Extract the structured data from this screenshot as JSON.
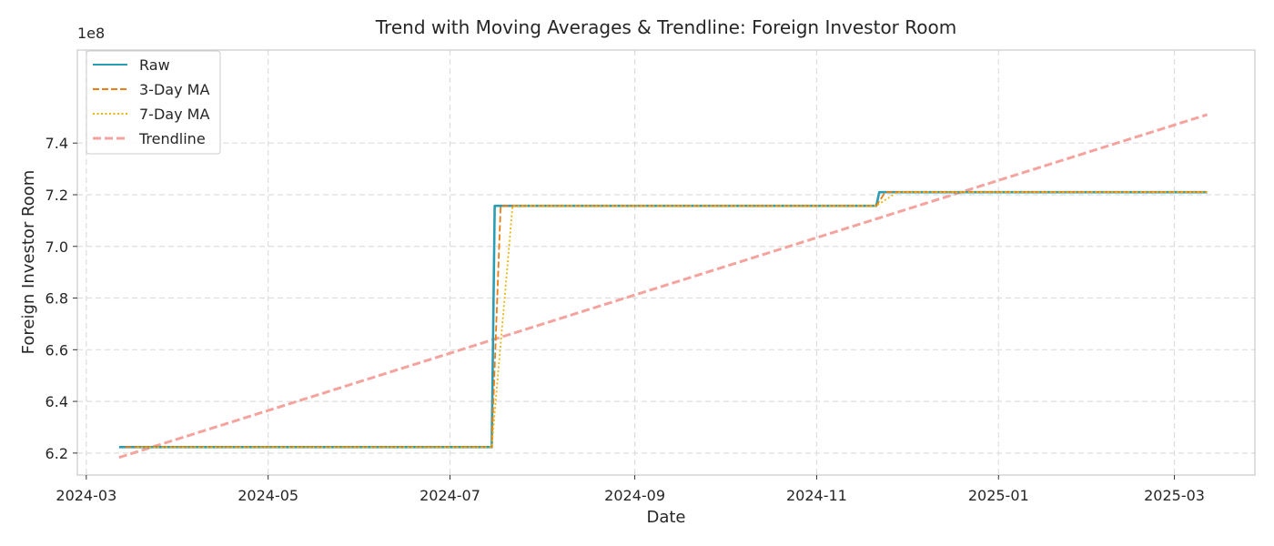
{
  "chart_data": {
    "type": "line",
    "title": "Trend with Moving Averages & Trendline: Foreign Investor Room",
    "xlabel": "Date",
    "ylabel": "Foreign Investor Room",
    "y_exponent_label": "1e8",
    "y_scale_factor": 100000000,
    "xlim": [
      "2024-02-27",
      "2025-03-28"
    ],
    "ylim": [
      6.115,
      7.76
    ],
    "x_ticks": [
      {
        "date": "2024-03-01",
        "label": "2024-03"
      },
      {
        "date": "2024-05-01",
        "label": "2024-05"
      },
      {
        "date": "2024-07-01",
        "label": "2024-07"
      },
      {
        "date": "2024-09-01",
        "label": "2024-09"
      },
      {
        "date": "2024-11-01",
        "label": "2024-11"
      },
      {
        "date": "2025-01-01",
        "label": "2025-01"
      },
      {
        "date": "2025-03-01",
        "label": "2025-03"
      }
    ],
    "y_ticks": [
      {
        "value": 6.2,
        "label": "6.2"
      },
      {
        "value": 6.4,
        "label": "6.4"
      },
      {
        "value": 6.6,
        "label": "6.6"
      },
      {
        "value": 6.8,
        "label": "6.8"
      },
      {
        "value": 7.0,
        "label": "7.0"
      },
      {
        "value": 7.2,
        "label": "7.2"
      },
      {
        "value": 7.4,
        "label": "7.4"
      }
    ],
    "grid": true,
    "legend": {
      "position": "top-left"
    },
    "series": [
      {
        "name": "Raw",
        "color": "#2a9db5",
        "style": "solid",
        "points": [
          {
            "x": "2024-03-12",
            "y": 6.223
          },
          {
            "x": "2024-07-15",
            "y": 6.223
          },
          {
            "x": "2024-07-16",
            "y": 7.157
          },
          {
            "x": "2024-11-21",
            "y": 7.157
          },
          {
            "x": "2024-11-22",
            "y": 7.21
          },
          {
            "x": "2025-03-12",
            "y": 7.21
          }
        ]
      },
      {
        "name": "3-Day MA",
        "color": "#ec7d12",
        "style": "dashed",
        "points": [
          {
            "x": "2024-03-14",
            "y": 6.223
          },
          {
            "x": "2024-07-15",
            "y": 6.223
          },
          {
            "x": "2024-07-16",
            "y": 6.534
          },
          {
            "x": "2024-07-17",
            "y": 6.846
          },
          {
            "x": "2024-07-18",
            "y": 7.157
          },
          {
            "x": "2024-11-21",
            "y": 7.157
          },
          {
            "x": "2024-11-22",
            "y": 7.175
          },
          {
            "x": "2024-11-23",
            "y": 7.192
          },
          {
            "x": "2024-11-24",
            "y": 7.21
          },
          {
            "x": "2025-03-12",
            "y": 7.21
          }
        ]
      },
      {
        "name": "7-Day MA",
        "color": "#e8b612",
        "style": "dotted",
        "points": [
          {
            "x": "2024-03-18",
            "y": 6.223
          },
          {
            "x": "2024-07-15",
            "y": 6.223
          },
          {
            "x": "2024-07-16",
            "y": 6.356
          },
          {
            "x": "2024-07-17",
            "y": 6.49
          },
          {
            "x": "2024-07-18",
            "y": 6.623
          },
          {
            "x": "2024-07-19",
            "y": 6.756
          },
          {
            "x": "2024-07-20",
            "y": 6.89
          },
          {
            "x": "2024-07-21",
            "y": 7.023
          },
          {
            "x": "2024-07-22",
            "y": 7.157
          },
          {
            "x": "2024-11-21",
            "y": 7.157
          },
          {
            "x": "2024-11-22",
            "y": 7.165
          },
          {
            "x": "2024-11-23",
            "y": 7.172
          },
          {
            "x": "2024-11-24",
            "y": 7.18
          },
          {
            "x": "2024-11-25",
            "y": 7.187
          },
          {
            "x": "2024-11-26",
            "y": 7.195
          },
          {
            "x": "2024-11-27",
            "y": 7.202
          },
          {
            "x": "2024-11-28",
            "y": 7.21
          },
          {
            "x": "2025-03-12",
            "y": 7.21
          }
        ]
      },
      {
        "name": "Trendline",
        "color": "#f4a39e",
        "style": "dashed",
        "points": [
          {
            "x": "2024-03-12",
            "y": 6.183
          },
          {
            "x": "2025-03-12",
            "y": 7.51
          }
        ]
      }
    ]
  }
}
